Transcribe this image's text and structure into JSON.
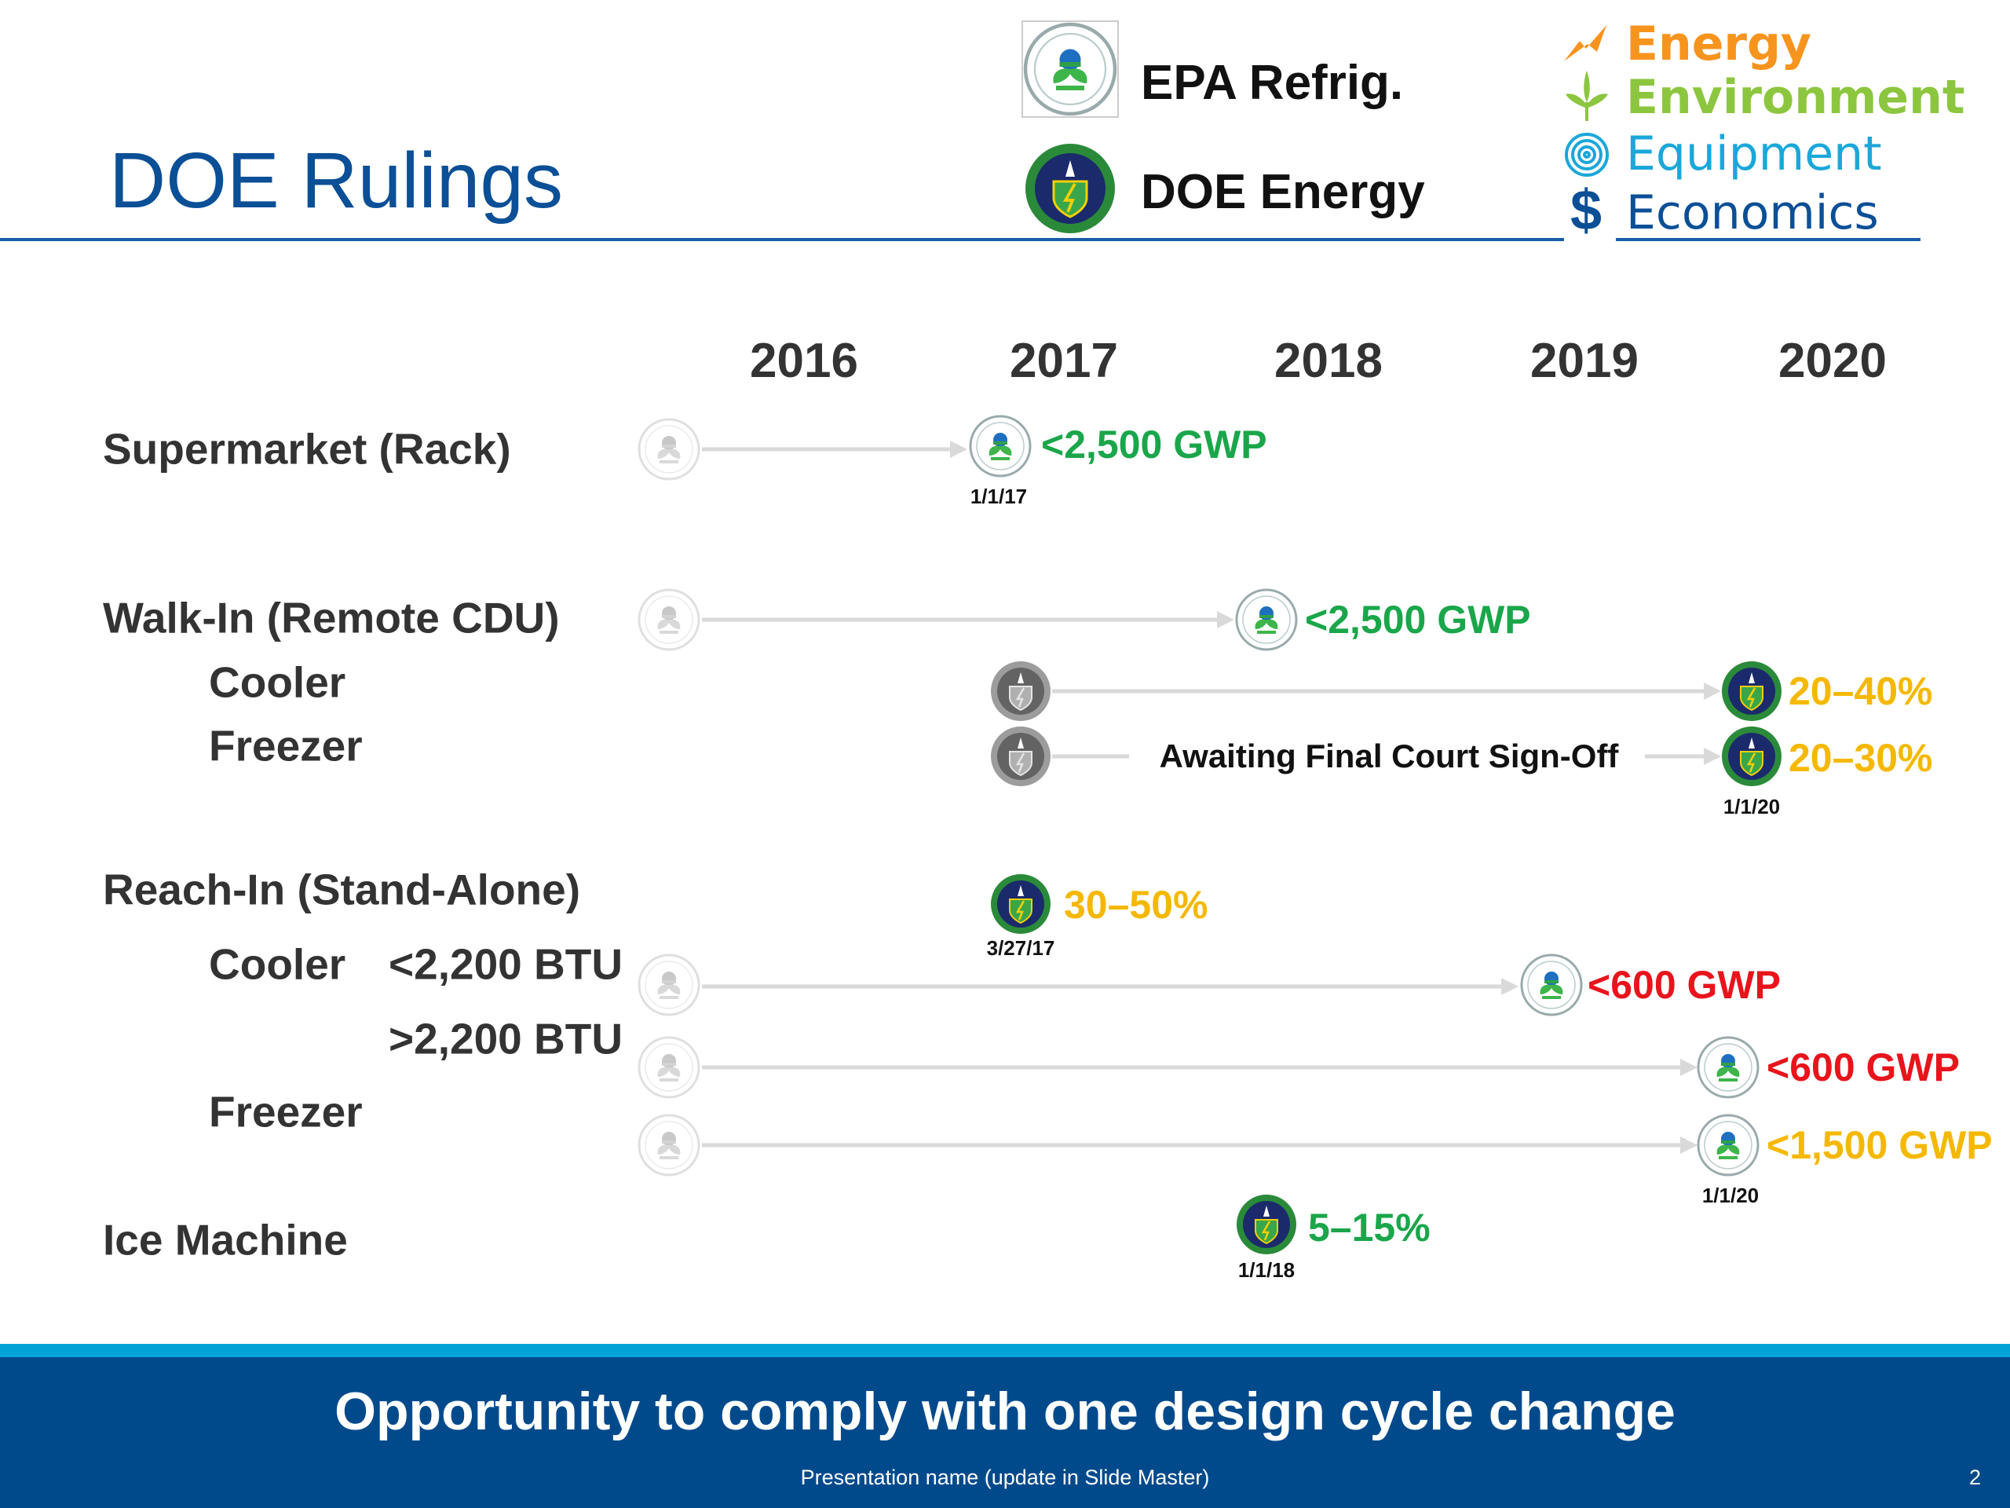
{
  "header": {
    "title": "DOE Rulings",
    "legend": {
      "epa": "EPA Refrig.",
      "doe": "DOE Energy"
    },
    "categories": [
      {
        "label": "Energy",
        "color": "#f7941d",
        "icon": "lightning-icon"
      },
      {
        "label": "Environment",
        "color": "#8cc63f",
        "icon": "leaf-icon"
      },
      {
        "label": "Equipment",
        "color": "#1ba7d9",
        "icon": "spiral-icon"
      },
      {
        "label": "Economics",
        "color": "#0b4f96",
        "icon": "dollar-icon"
      }
    ]
  },
  "years": [
    "2016",
    "2017",
    "2018",
    "2019",
    "2020"
  ],
  "rows": {
    "supermarket": "Supermarket (Rack)",
    "walkin": "Walk-In (Remote CDU)",
    "walkin_cooler": "Cooler",
    "walkin_freezer": "Freezer",
    "reachin": "Reach-In (Stand-Alone)",
    "reachin_cooler": "Cooler",
    "btu_low": "<2,200 BTU",
    "btu_high": ">2,200 BTU",
    "reachin_freezer": "Freezer",
    "ice": "Ice Machine"
  },
  "milestones": {
    "supermarket": {
      "value": "<2,500 GWP",
      "date": "1/1/17"
    },
    "walkin_epa": {
      "value": "<2,500 GWP"
    },
    "walkin_cooler": {
      "value": "20–40%"
    },
    "walkin_freezer": {
      "value": "20–30%",
      "date": "1/1/20",
      "note": "Awaiting Final Court Sign-Off"
    },
    "reachin_doe": {
      "value": "30–50%",
      "date": "3/27/17"
    },
    "cooler_low": {
      "value": "<600 GWP"
    },
    "cooler_high": {
      "value": "<600 GWP"
    },
    "freezer": {
      "value": "<1,500 GWP",
      "date": "1/1/20"
    },
    "ice": {
      "value": "5–15%",
      "date": "1/1/18"
    }
  },
  "colors": {
    "green": "#1aa64a",
    "yellow": "#f5b800",
    "red": "#e8141c"
  },
  "footer": {
    "banner": "Opportunity to comply with one design cycle change",
    "presentation": "Presentation name (update in Slide Master)",
    "page": "2"
  }
}
